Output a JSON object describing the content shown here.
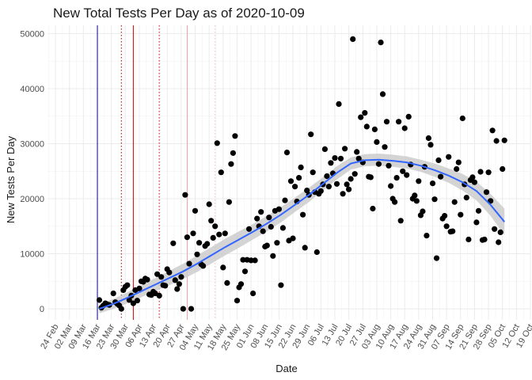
{
  "chart_data": {
    "type": "scatter",
    "title": "New Total Tests Per Day as of 2020-10-09",
    "xlabel": "Date",
    "ylabel": "New Tests Per Day",
    "ylim": [
      -2000,
      51500
    ],
    "xlim": [
      "2020-02-20",
      "2020-10-19"
    ],
    "x_ticks": [
      "2020-02-24",
      "2020-03-02",
      "2020-03-09",
      "2020-03-16",
      "2020-03-23",
      "2020-03-30",
      "2020-04-06",
      "2020-04-13",
      "2020-04-20",
      "2020-04-27",
      "2020-05-04",
      "2020-05-11",
      "2020-05-18",
      "2020-05-25",
      "2020-06-01",
      "2020-06-08",
      "2020-06-15",
      "2020-06-22",
      "2020-06-29",
      "2020-07-06",
      "2020-07-13",
      "2020-07-20",
      "2020-07-27",
      "2020-08-03",
      "2020-08-10",
      "2020-08-17",
      "2020-08-24",
      "2020-08-31",
      "2020-09-07",
      "2020-09-14",
      "2020-09-21",
      "2020-09-28",
      "2020-10-05",
      "2020-10-12",
      "2020-10-19"
    ],
    "x_tick_labels": [
      "24 Feb",
      "02 Mar",
      "09 Mar",
      "16 Mar",
      "23 Mar",
      "30 Mar",
      "06 Apr",
      "13 Apr",
      "20 Apr",
      "27 Apr",
      "04 May",
      "11 May",
      "18 May",
      "25 May",
      "01 Jun",
      "08 Jun",
      "15 Jun",
      "22 Jun",
      "29 Jun",
      "06 Jul",
      "13 Jul",
      "20 Jul",
      "27 Jul",
      "03 Aug",
      "10 Aug",
      "17 Aug",
      "24 Aug",
      "31 Aug",
      "07 Sep",
      "14 Sep",
      "21 Sep",
      "28 Sep",
      "05 Oct",
      "12 Oct",
      "19 Oct"
    ],
    "y_ticks": [
      0,
      10000,
      20000,
      30000,
      40000,
      50000
    ],
    "grid": true,
    "vlines": [
      {
        "x": "2020-03-16",
        "color": "#00008b",
        "style": "solid"
      },
      {
        "x": "2020-03-28",
        "color": "#8b0000",
        "style": "dotted"
      },
      {
        "x": "2020-04-03",
        "color": "#cc0000",
        "style": "solid"
      },
      {
        "x": "2020-04-16",
        "color": "#cc0000",
        "style": "dotted"
      },
      {
        "x": "2020-04-30",
        "color": "#f4a0a0",
        "style": "solid"
      },
      {
        "x": "2020-05-14",
        "color": "#f4b8b8",
        "style": "dotted"
      }
    ],
    "points": [
      [
        "2020-03-17",
        1600
      ],
      [
        "2020-03-18",
        200
      ],
      [
        "2020-03-19",
        600
      ],
      [
        "2020-03-20",
        1000
      ],
      [
        "2020-03-21",
        800
      ],
      [
        "2020-03-22",
        700
      ],
      [
        "2020-03-24",
        2800
      ],
      [
        "2020-03-25",
        1200
      ],
      [
        "2020-03-26",
        900
      ],
      [
        "2020-03-27",
        600
      ],
      [
        "2020-03-28",
        0
      ],
      [
        "2020-03-29",
        3400
      ],
      [
        "2020-03-30",
        4000
      ],
      [
        "2020-03-31",
        4300
      ],
      [
        "2020-04-01",
        1600
      ],
      [
        "2020-04-02",
        2400
      ],
      [
        "2020-04-03",
        1000
      ],
      [
        "2020-04-04",
        3400
      ],
      [
        "2020-04-05",
        1500
      ],
      [
        "2020-04-06",
        3700
      ],
      [
        "2020-04-07",
        5000
      ],
      [
        "2020-04-08",
        4900
      ],
      [
        "2020-04-09",
        5500
      ],
      [
        "2020-04-10",
        5300
      ],
      [
        "2020-04-11",
        2600
      ],
      [
        "2020-04-12",
        2500
      ],
      [
        "2020-04-13",
        3100
      ],
      [
        "2020-04-14",
        2800
      ],
      [
        "2020-04-15",
        6300
      ],
      [
        "2020-04-16",
        2400
      ],
      [
        "2020-04-17",
        5800
      ],
      [
        "2020-04-18",
        4300
      ],
      [
        "2020-04-19",
        4200
      ],
      [
        "2020-04-20",
        7200
      ],
      [
        "2020-04-21",
        6600
      ],
      [
        "2020-04-23",
        11900
      ],
      [
        "2020-04-24",
        5200
      ],
      [
        "2020-04-25",
        3600
      ],
      [
        "2020-04-26",
        4500
      ],
      [
        "2020-04-27",
        5800
      ],
      [
        "2020-04-28",
        0
      ],
      [
        "2020-04-29",
        20700
      ],
      [
        "2020-04-30",
        13000
      ],
      [
        "2020-05-01",
        8200
      ],
      [
        "2020-05-02",
        0
      ],
      [
        "2020-05-03",
        13700
      ],
      [
        "2020-05-04",
        17800
      ],
      [
        "2020-05-05",
        9900
      ],
      [
        "2020-05-06",
        12000
      ],
      [
        "2020-05-07",
        8100
      ],
      [
        "2020-05-08",
        7800
      ],
      [
        "2020-05-09",
        11400
      ],
      [
        "2020-05-10",
        11800
      ],
      [
        "2020-05-11",
        19000
      ],
      [
        "2020-05-12",
        16000
      ],
      [
        "2020-05-13",
        12900
      ],
      [
        "2020-05-14",
        15000
      ],
      [
        "2020-05-15",
        30100
      ],
      [
        "2020-05-16",
        13500
      ],
      [
        "2020-05-17",
        24800
      ],
      [
        "2020-05-18",
        7500
      ],
      [
        "2020-05-19",
        13700
      ],
      [
        "2020-05-20",
        4700
      ],
      [
        "2020-05-21",
        19400
      ],
      [
        "2020-05-22",
        26300
      ],
      [
        "2020-05-23",
        28300
      ],
      [
        "2020-05-24",
        31400
      ],
      [
        "2020-05-25",
        1500
      ],
      [
        "2020-05-26",
        3900
      ],
      [
        "2020-05-27",
        4500
      ],
      [
        "2020-05-28",
        8900
      ],
      [
        "2020-05-29",
        6800
      ],
      [
        "2020-05-30",
        8900
      ],
      [
        "2020-05-31",
        14500
      ],
      [
        "2020-06-01",
        8800
      ],
      [
        "2020-06-02",
        2800
      ],
      [
        "2020-06-03",
        8800
      ],
      [
        "2020-06-04",
        16400
      ],
      [
        "2020-06-05",
        15000
      ],
      [
        "2020-06-06",
        17600
      ],
      [
        "2020-06-07",
        14100
      ],
      [
        "2020-06-08",
        11300
      ],
      [
        "2020-06-09",
        11500
      ],
      [
        "2020-06-10",
        16600
      ],
      [
        "2020-06-11",
        14900
      ],
      [
        "2020-06-12",
        9600
      ],
      [
        "2020-06-13",
        17800
      ],
      [
        "2020-06-14",
        12000
      ],
      [
        "2020-06-15",
        18100
      ],
      [
        "2020-06-16",
        4300
      ],
      [
        "2020-06-17",
        14700
      ],
      [
        "2020-06-18",
        19700
      ],
      [
        "2020-06-19",
        28400
      ],
      [
        "2020-06-20",
        12400
      ],
      [
        "2020-06-21",
        23200
      ],
      [
        "2020-06-22",
        12800
      ],
      [
        "2020-06-23",
        22200
      ],
      [
        "2020-06-24",
        19500
      ],
      [
        "2020-06-25",
        23800
      ],
      [
        "2020-06-26",
        25700
      ],
      [
        "2020-06-27",
        17100
      ],
      [
        "2020-06-28",
        11100
      ],
      [
        "2020-06-29",
        21500
      ],
      [
        "2020-06-30",
        20700
      ],
      [
        "2020-07-01",
        31700
      ],
      [
        "2020-07-02",
        24800
      ],
      [
        "2020-07-03",
        21200
      ],
      [
        "2020-07-04",
        10300
      ],
      [
        "2020-07-05",
        20900
      ],
      [
        "2020-07-06",
        21400
      ],
      [
        "2020-07-07",
        22600
      ],
      [
        "2020-07-08",
        29000
      ],
      [
        "2020-07-09",
        24100
      ],
      [
        "2020-07-10",
        22200
      ],
      [
        "2020-07-11",
        26500
      ],
      [
        "2020-07-12",
        24600
      ],
      [
        "2020-07-13",
        27400
      ],
      [
        "2020-07-14",
        22700
      ],
      [
        "2020-07-15",
        37200
      ],
      [
        "2020-07-16",
        27300
      ],
      [
        "2020-07-17",
        20900
      ],
      [
        "2020-07-18",
        29100
      ],
      [
        "2020-07-19",
        22600
      ],
      [
        "2020-07-20",
        21700
      ],
      [
        "2020-07-21",
        23600
      ],
      [
        "2020-07-22",
        49000
      ],
      [
        "2020-07-23",
        24500
      ],
      [
        "2020-07-24",
        28500
      ],
      [
        "2020-07-25",
        27300
      ],
      [
        "2020-07-26",
        34800
      ],
      [
        "2020-07-27",
        26600
      ],
      [
        "2020-07-28",
        35600
      ],
      [
        "2020-07-29",
        33100
      ],
      [
        "2020-07-30",
        24000
      ],
      [
        "2020-07-31",
        23900
      ],
      [
        "2020-08-01",
        18200
      ],
      [
        "2020-08-02",
        32600
      ],
      [
        "2020-08-03",
        30300
      ],
      [
        "2020-08-04",
        26300
      ],
      [
        "2020-08-05",
        48400
      ],
      [
        "2020-08-06",
        39000
      ],
      [
        "2020-08-07",
        29400
      ],
      [
        "2020-08-08",
        34000
      ],
      [
        "2020-08-09",
        26000
      ],
      [
        "2020-08-10",
        22300
      ],
      [
        "2020-08-11",
        20000
      ],
      [
        "2020-08-12",
        19400
      ],
      [
        "2020-08-13",
        23800
      ],
      [
        "2020-08-14",
        34000
      ],
      [
        "2020-08-15",
        16000
      ],
      [
        "2020-08-16",
        25000
      ],
      [
        "2020-08-17",
        32800
      ],
      [
        "2020-08-18",
        24300
      ],
      [
        "2020-08-19",
        34900
      ],
      [
        "2020-08-20",
        26200
      ],
      [
        "2020-08-21",
        20000
      ],
      [
        "2020-08-22",
        20600
      ],
      [
        "2020-08-23",
        19600
      ],
      [
        "2020-08-24",
        23200
      ],
      [
        "2020-08-25",
        17000
      ],
      [
        "2020-08-26",
        17700
      ],
      [
        "2020-08-27",
        25800
      ],
      [
        "2020-08-28",
        13300
      ],
      [
        "2020-08-29",
        31000
      ],
      [
        "2020-08-30",
        29800
      ],
      [
        "2020-08-31",
        22800
      ],
      [
        "2020-09-01",
        19900
      ],
      [
        "2020-09-02",
        9200
      ],
      [
        "2020-09-03",
        27000
      ],
      [
        "2020-09-04",
        24000
      ],
      [
        "2020-09-05",
        16400
      ],
      [
        "2020-09-06",
        16900
      ],
      [
        "2020-09-07",
        15000
      ],
      [
        "2020-09-08",
        27600
      ],
      [
        "2020-09-09",
        14000
      ],
      [
        "2020-09-10",
        14100
      ],
      [
        "2020-09-11",
        19400
      ],
      [
        "2020-09-12",
        25400
      ],
      [
        "2020-09-13",
        26600
      ],
      [
        "2020-09-14",
        17100
      ],
      [
        "2020-09-15",
        34600
      ],
      [
        "2020-09-16",
        22600
      ],
      [
        "2020-09-17",
        20200
      ],
      [
        "2020-09-18",
        12600
      ],
      [
        "2020-09-19",
        23400
      ],
      [
        "2020-09-20",
        23900
      ],
      [
        "2020-09-21",
        23000
      ],
      [
        "2020-09-22",
        15700
      ],
      [
        "2020-09-23",
        17800
      ],
      [
        "2020-09-24",
        24900
      ],
      [
        "2020-09-25",
        12500
      ],
      [
        "2020-09-26",
        12600
      ],
      [
        "2020-09-27",
        21200
      ],
      [
        "2020-09-28",
        24800
      ],
      [
        "2020-09-29",
        19600
      ],
      [
        "2020-09-30",
        32400
      ],
      [
        "2020-10-01",
        14500
      ],
      [
        "2020-10-02",
        30500
      ],
      [
        "2020-10-03",
        12100
      ],
      [
        "2020-10-04",
        13900
      ],
      [
        "2020-10-05",
        25400
      ],
      [
        "2020-10-06",
        30600
      ]
    ],
    "trend": {
      "x": [
        "2020-03-17",
        "2020-03-24",
        "2020-03-31",
        "2020-04-07",
        "2020-04-14",
        "2020-04-21",
        "2020-04-28",
        "2020-05-05",
        "2020-05-12",
        "2020-05-19",
        "2020-05-26",
        "2020-06-02",
        "2020-06-09",
        "2020-06-16",
        "2020-06-23",
        "2020-06-30",
        "2020-07-07",
        "2020-07-14",
        "2020-07-21",
        "2020-07-28",
        "2020-08-04",
        "2020-08-11",
        "2020-08-18",
        "2020-08-25",
        "2020-09-01",
        "2020-09-08",
        "2020-09-15",
        "2020-09-22",
        "2020-09-29",
        "2020-10-06"
      ],
      "y": [
        0,
        900,
        2000,
        3200,
        4400,
        5600,
        6800,
        8200,
        9700,
        11200,
        12600,
        14000,
        15500,
        17100,
        18900,
        20700,
        22700,
        24700,
        26400,
        27000,
        27100,
        26900,
        26600,
        26000,
        25200,
        24200,
        23000,
        21400,
        18900,
        15800
      ],
      "band": [
        800,
        900,
        1000,
        1100,
        1200,
        1300,
        1400,
        1500,
        1500,
        1500,
        1500,
        1400,
        1400,
        1400,
        1300,
        1300,
        1200,
        1200,
        1100,
        1100,
        1100,
        1100,
        1100,
        1100,
        1200,
        1300,
        1500,
        1700,
        2000,
        2400
      ],
      "color": "#3366ff",
      "band_color": "#cccccc"
    }
  }
}
